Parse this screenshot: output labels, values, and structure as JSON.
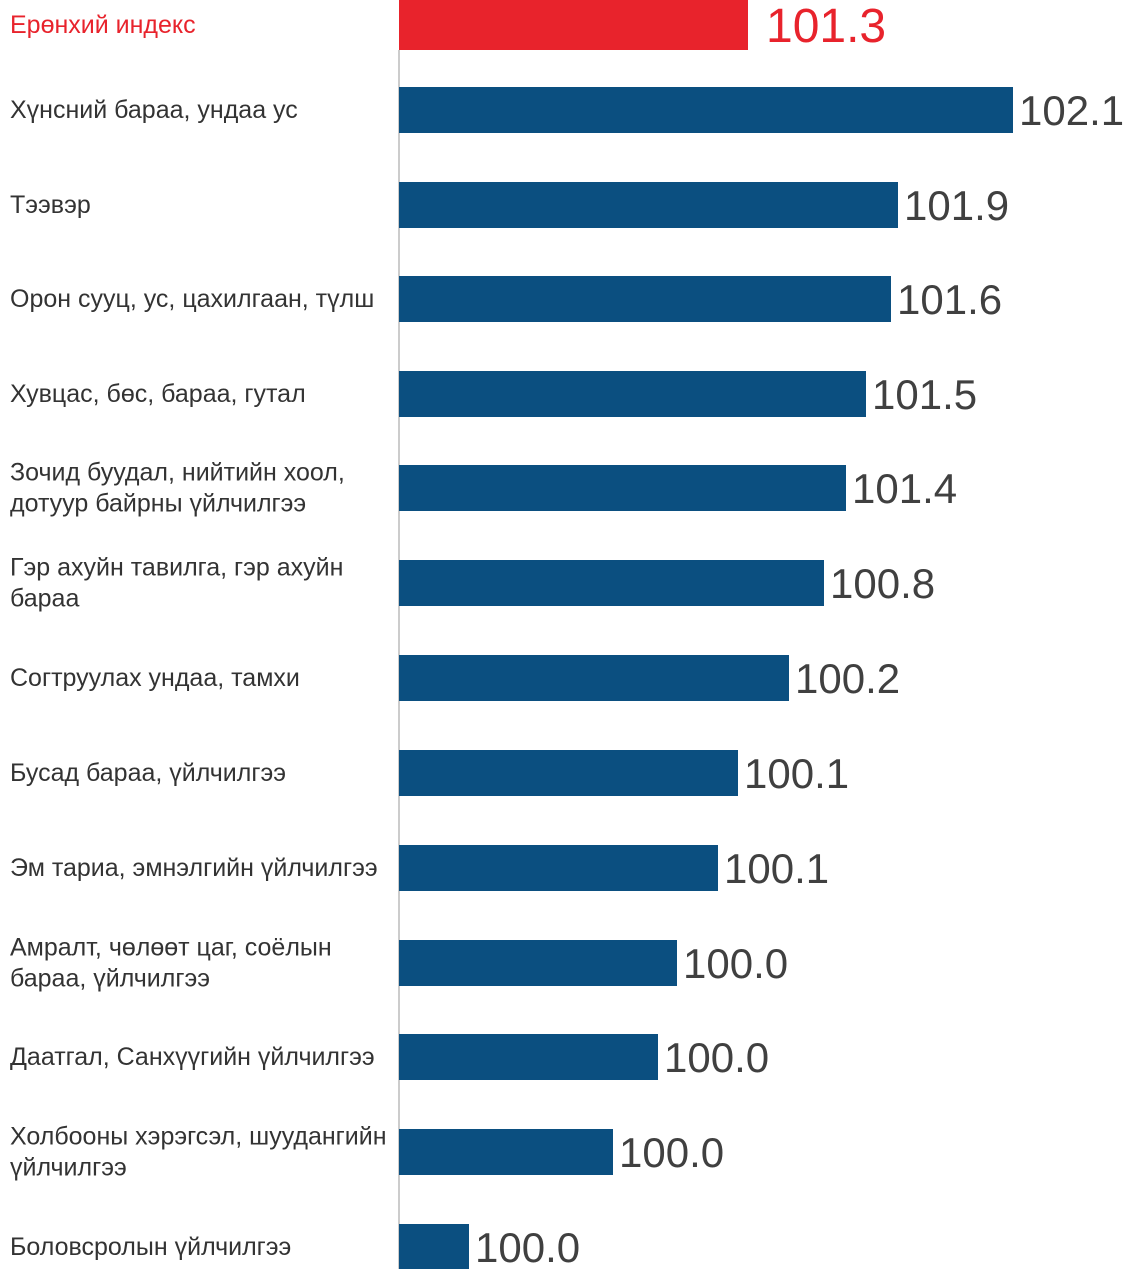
{
  "chart_data": {
    "type": "bar",
    "orientation": "horizontal",
    "categories": [
      [
        "Ерөнхий индекс"
      ],
      [
        "Хүнсний бараа, ундаа ус"
      ],
      [
        "Тээвэр"
      ],
      [
        "Орон сууц, ус, цахилгаан, түлш"
      ],
      [
        "Хувцас, бөс, бараа, гутал"
      ],
      [
        "Зочид буудал, нийтийн хоол,",
        "дотуур байрны үйлчилгээ"
      ],
      [
        "Гэр ахуйн тавилга, гэр ахуйн",
        "бараа"
      ],
      [
        "Согтруулах ундаа, тамхи"
      ],
      [
        "Бусад бараа, үйлчилгээ"
      ],
      [
        "Эм тариа, эмнэлгийн үйлчилгээ"
      ],
      [
        "Амралт, чөлөөт цаг,  соёлын",
        "бараа, үйлчилгээ"
      ],
      [
        "Даатгал, Санхүүгийн үйлчилгээ"
      ],
      [
        "Холбооны хэрэгсэл, шуудангийн",
        "үйлчилгээ"
      ],
      [
        "Боловсролын үйлчилгээ"
      ]
    ],
    "values": [
      101.3,
      102.1,
      101.9,
      101.6,
      101.5,
      101.4,
      100.8,
      100.2,
      100.1,
      100.1,
      100.0,
      100.0,
      100.0,
      100.0
    ],
    "value_labels": [
      "101.3",
      "102.1",
      "101.9",
      "101.6",
      "101.5",
      "101.4",
      "100.8",
      "100.2",
      "100.1",
      "100.1",
      "100.0",
      "100.0",
      "100.0",
      "100.0"
    ],
    "highlight_index": 0,
    "title": "",
    "xlabel": "",
    "ylabel": "",
    "grid": false,
    "legend": "none"
  },
  "colors": {
    "bar": "#0b4f80",
    "highlight": "#e8232c",
    "axis": "#cccccc"
  }
}
